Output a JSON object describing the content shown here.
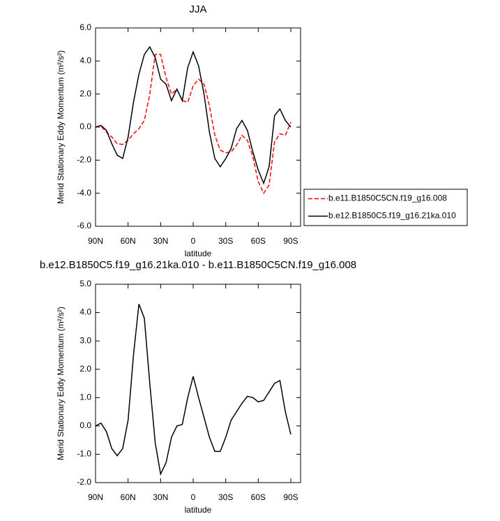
{
  "chart_data": [
    {
      "type": "line",
      "title": "JJA",
      "xlabel": "latitude",
      "ylabel": "Merid Stationary Eddy Momentum (m²/s²)",
      "x": [
        90,
        85,
        80,
        75,
        70,
        65,
        60,
        55,
        50,
        45,
        40,
        35,
        30,
        25,
        20,
        15,
        10,
        5,
        0,
        -5,
        -10,
        -15,
        -20,
        -25,
        -30,
        -35,
        -40,
        -45,
        -50,
        -55,
        -60,
        -65,
        -70,
        -75,
        -80,
        -85,
        -90
      ],
      "series": [
        {
          "name": "b.e11.B1850C5CN.f19_g16.008",
          "color": "#ff0000",
          "dashed": true,
          "values": [
            0.0,
            0.05,
            -0.3,
            -0.6,
            -1.0,
            -1.05,
            -0.8,
            -0.4,
            -0.1,
            0.4,
            2.0,
            4.4,
            4.4,
            3.0,
            2.0,
            2.3,
            1.6,
            1.5,
            2.5,
            2.9,
            2.6,
            1.3,
            -0.5,
            -1.4,
            -1.55,
            -1.5,
            -1.1,
            -0.5,
            -0.8,
            -1.8,
            -3.3,
            -4.0,
            -3.5,
            -0.9,
            -0.4,
            -0.5,
            0.3
          ]
        },
        {
          "name": "b.e12.B1850C5.f19_g16.21ka.010",
          "color": "#000000",
          "dashed": false,
          "values": [
            0.0,
            0.1,
            -0.2,
            -1.0,
            -1.7,
            -1.9,
            -0.6,
            1.5,
            3.2,
            4.4,
            4.85,
            4.2,
            2.9,
            2.6,
            1.6,
            2.3,
            1.6,
            3.6,
            4.55,
            3.7,
            2.0,
            -0.3,
            -1.9,
            -2.4,
            -1.9,
            -1.3,
            -0.1,
            0.4,
            -0.2,
            -1.5,
            -2.6,
            -3.4,
            -2.4,
            0.7,
            1.1,
            0.4,
            0.0
          ]
        }
      ],
      "xlim": [
        90,
        -99
      ],
      "xticks": [
        {
          "value": 90,
          "label": "90N"
        },
        {
          "value": 60,
          "label": "60N"
        },
        {
          "value": 30,
          "label": "30N"
        },
        0,
        {
          "value": -30,
          "label": "30S"
        },
        {
          "value": -60,
          "label": "60S"
        },
        {
          "value": -90,
          "label": "90S"
        }
      ],
      "ylim": [
        -6,
        6
      ],
      "yticks": [
        {
          "value": -6,
          "label": "-6.0"
        },
        {
          "value": -4,
          "label": "-4.0"
        },
        {
          "value": -2,
          "label": "-2.0"
        },
        {
          "value": 0,
          "label": "0.0"
        },
        {
          "value": 2,
          "label": "2.0"
        },
        {
          "value": 4,
          "label": "4.0"
        },
        {
          "value": 6,
          "label": "6.0"
        }
      ],
      "legend": "right"
    },
    {
      "type": "line",
      "title": "b.e12.B1850C5.f19_g16.21ka.010 - b.e11.B1850C5CN.f19_g16.008",
      "xlabel": "latitude",
      "ylabel": "Merid Stationary Eddy Momentum (m²/s²)",
      "x": [
        90,
        85,
        80,
        75,
        70,
        65,
        60,
        55,
        50,
        45,
        40,
        35,
        30,
        25,
        20,
        15,
        10,
        5,
        0,
        -5,
        -10,
        -15,
        -20,
        -25,
        -30,
        -35,
        -40,
        -45,
        -50,
        -55,
        -60,
        -65,
        -70,
        -75,
        -80,
        -85,
        -90
      ],
      "series": [
        {
          "color": "#000000",
          "dashed": false,
          "values": [
            0.0,
            0.1,
            -0.2,
            -0.8,
            -1.05,
            -0.8,
            0.2,
            2.5,
            4.3,
            3.8,
            1.5,
            -0.6,
            -1.7,
            -1.3,
            -0.4,
            0.0,
            0.05,
            1.0,
            1.75,
            1.0,
            0.3,
            -0.4,
            -0.9,
            -0.9,
            -0.4,
            0.2,
            0.5,
            0.8,
            1.05,
            1.0,
            0.85,
            0.9,
            1.2,
            1.5,
            1.6,
            0.5,
            -0.3
          ]
        }
      ],
      "xlim": [
        90,
        -99
      ],
      "xticks": [
        {
          "value": 90,
          "label": "90N"
        },
        {
          "value": 60,
          "label": "60N"
        },
        {
          "value": 30,
          "label": "30N"
        },
        0,
        {
          "value": -30,
          "label": "30S"
        },
        {
          "value": -60,
          "label": "60S"
        },
        {
          "value": -90,
          "label": "90S"
        }
      ],
      "ylim": [
        -2,
        5
      ],
      "yticks": [
        {
          "value": -2,
          "label": "-2.0"
        },
        {
          "value": -1,
          "label": "-1.0"
        },
        {
          "value": 0,
          "label": "0.0"
        },
        {
          "value": 1,
          "label": "1.0"
        },
        {
          "value": 2,
          "label": "2.0"
        },
        {
          "value": 3,
          "label": "3.0"
        },
        {
          "value": 4,
          "label": "4.0"
        },
        {
          "value": 5,
          "label": "5.0"
        }
      ]
    }
  ]
}
